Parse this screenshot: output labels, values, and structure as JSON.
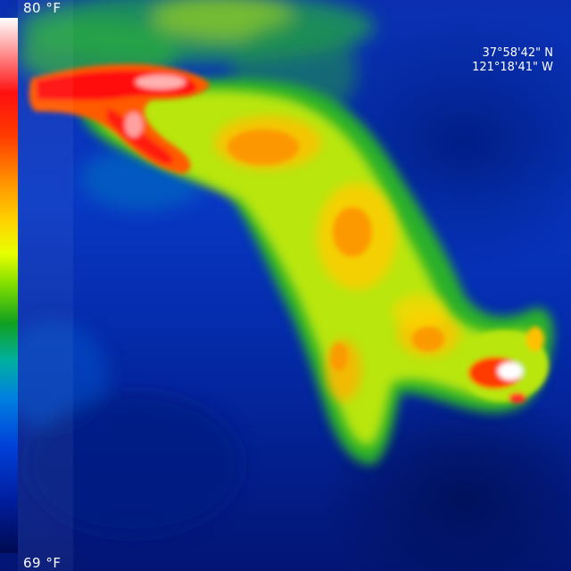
{
  "image": {
    "description_colors": {
      "palette": [
        "#000a50",
        "#001ea0",
        "#0040d8",
        "#0080e0",
        "#10a020",
        "#7ddc00",
        "#e8ff00",
        "#ffd400",
        "#ff8c00",
        "#ff3a00",
        "#ff1010",
        "#ffffff"
      ]
    }
  },
  "scale": {
    "max_label": "80 °F",
    "min_label": "69 °F"
  },
  "gps": {
    "latitude": "37°58'42\" N",
    "longitude": "121°18'41\" W"
  }
}
